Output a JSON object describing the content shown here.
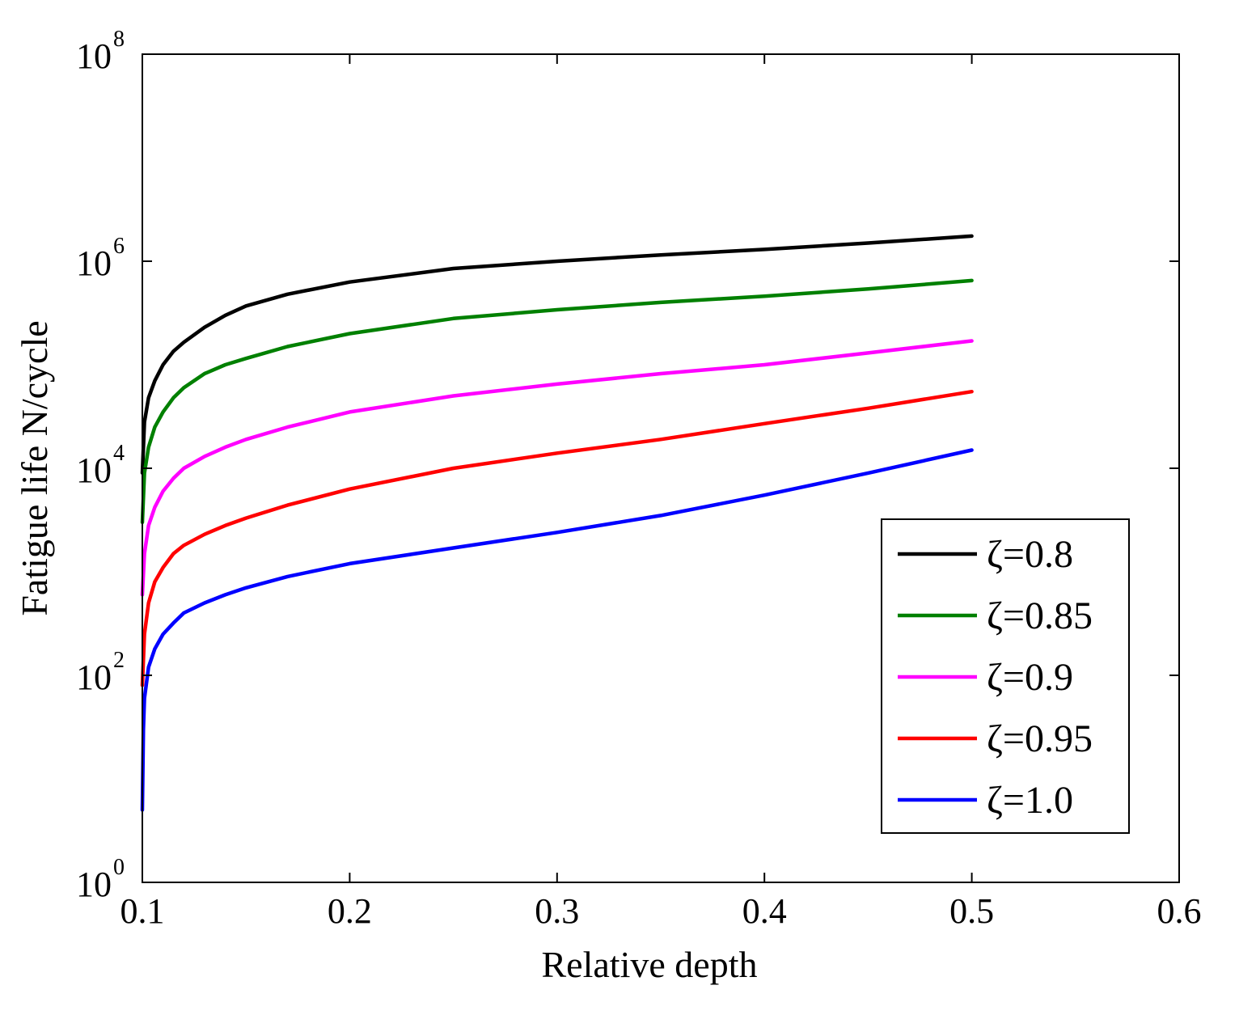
{
  "chart_data": {
    "type": "line",
    "title": "",
    "xlabel": "Relative depth",
    "ylabel": "Fatigue life N/cycle",
    "xlim": [
      0.1,
      0.6
    ],
    "ylim": [
      1,
      100000000
    ],
    "yscale": "log",
    "grid": false,
    "legend_position": "lower-right",
    "x_ticks": [
      "0.1",
      "0.2",
      "0.3",
      "0.4",
      "0.5",
      "0.6"
    ],
    "y_ticks": [
      {
        "base": "10",
        "exp": "0"
      },
      {
        "base": "10",
        "exp": "2"
      },
      {
        "base": "10",
        "exp": "4"
      },
      {
        "base": "10",
        "exp": "6"
      },
      {
        "base": "10",
        "exp": "8"
      }
    ],
    "series": [
      {
        "name": "ζ=0.8",
        "color": "#000000",
        "x": [
          0.1,
          0.101,
          0.103,
          0.106,
          0.11,
          0.115,
          0.12,
          0.13,
          0.14,
          0.15,
          0.17,
          0.2,
          0.25,
          0.3,
          0.35,
          0.4,
          0.45,
          0.5
        ],
        "y": [
          9000,
          28000,
          48000,
          70000,
          100000,
          135000,
          165000,
          230000,
          300000,
          370000,
          480000,
          630000,
          850000,
          1000000,
          1150000,
          1300000,
          1500000,
          1750000
        ]
      },
      {
        "name": "ζ=0.85",
        "color": "#008000",
        "x": [
          0.1,
          0.101,
          0.103,
          0.106,
          0.11,
          0.115,
          0.12,
          0.13,
          0.14,
          0.15,
          0.17,
          0.2,
          0.25,
          0.3,
          0.35,
          0.4,
          0.45,
          0.5
        ],
        "y": [
          3000,
          9000,
          16000,
          25000,
          35000,
          48000,
          60000,
          82000,
          100000,
          115000,
          150000,
          200000,
          280000,
          340000,
          400000,
          460000,
          540000,
          650000
        ]
      },
      {
        "name": "ζ=0.9",
        "color": "#ff00ff",
        "x": [
          0.1,
          0.101,
          0.103,
          0.106,
          0.11,
          0.115,
          0.12,
          0.13,
          0.14,
          0.15,
          0.17,
          0.2,
          0.25,
          0.3,
          0.35,
          0.4,
          0.45,
          0.5
        ],
        "y": [
          600,
          1500,
          2800,
          4200,
          6000,
          8000,
          10000,
          13000,
          16000,
          19000,
          25000,
          35000,
          50000,
          65000,
          82000,
          100000,
          130000,
          170000
        ]
      },
      {
        "name": "ζ=0.95",
        "color": "#ff0000",
        "x": [
          0.1,
          0.101,
          0.103,
          0.106,
          0.11,
          0.115,
          0.12,
          0.13,
          0.14,
          0.15,
          0.17,
          0.2,
          0.25,
          0.3,
          0.35,
          0.4,
          0.45,
          0.5
        ],
        "y": [
          80,
          250,
          500,
          800,
          1100,
          1500,
          1800,
          2300,
          2800,
          3300,
          4400,
          6300,
          10000,
          14000,
          19000,
          27000,
          38000,
          55000
        ]
      },
      {
        "name": "ζ=1.0",
        "color": "#0000ff",
        "x": [
          0.1,
          0.1005,
          0.101,
          0.103,
          0.106,
          0.11,
          0.115,
          0.12,
          0.13,
          0.14,
          0.15,
          0.17,
          0.2,
          0.25,
          0.3,
          0.35,
          0.4,
          0.45,
          0.5
        ],
        "y": [
          5,
          30,
          60,
          120,
          180,
          250,
          320,
          400,
          500,
          600,
          700,
          900,
          1200,
          1700,
          2400,
          3500,
          5500,
          9000,
          15000
        ]
      }
    ]
  }
}
